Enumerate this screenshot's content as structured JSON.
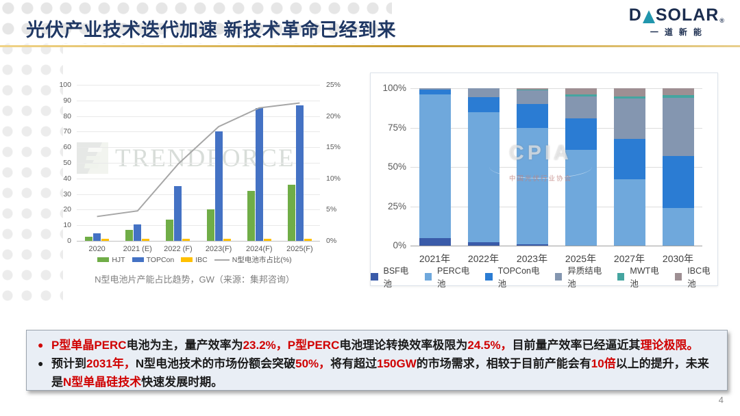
{
  "header": {
    "title": "光伏产业技术迭代加速 新技术革命已经到来",
    "logo": {
      "part1": "D",
      "part2": "SOLAR",
      "reg": "®",
      "subtitle": "一道新能"
    }
  },
  "page_number": "4",
  "watermarks": {
    "left_chart": "TRENDFORCE",
    "right_chart_main": "CPIA",
    "right_chart_sub": "中国光伏行业协会"
  },
  "chart_data": [
    {
      "type": "bar",
      "title": "N型电池片产能占比趋势，GW（来源：集邦咨询）",
      "categories": [
        "2020",
        "2021 (E)",
        "2022 (F)",
        "2023(F)",
        "2024(F)",
        "2025(F)"
      ],
      "series": [
        {
          "name": "HJT",
          "type": "bar",
          "color": "#70ad47",
          "values": [
            2.5,
            7,
            13.5,
            20,
            32,
            36
          ]
        },
        {
          "name": "TOPCon",
          "type": "bar",
          "color": "#4472c4",
          "values": [
            5,
            10.5,
            35,
            70,
            85,
            87
          ]
        },
        {
          "name": "IBC",
          "type": "bar",
          "color": "#ffc000",
          "values": [
            1.5,
            1.5,
            1.5,
            1.5,
            1.5,
            1.5
          ]
        },
        {
          "name": "N型电池市占比(%)",
          "type": "line",
          "color": "#a6a6a6",
          "axis": "right",
          "values": [
            3.9,
            4.8,
            12.3,
            18.3,
            21.3,
            22.1
          ]
        }
      ],
      "left_axis": {
        "min": 0,
        "max": 100,
        "step": 10
      },
      "right_axis": {
        "min": 0,
        "max": 25,
        "step": 5,
        "suffix": "%"
      },
      "grid": true,
      "legend_position": "bottom"
    },
    {
      "type": "bar",
      "subtype": "stacked-100",
      "title": "",
      "categories": [
        "2021年",
        "2022年",
        "2023年",
        "2025年",
        "2027年",
        "2030年"
      ],
      "series": [
        {
          "name": "BSF电池",
          "color": "#3a5ba9",
          "values": [
            5,
            2,
            1,
            0,
            0,
            0
          ]
        },
        {
          "name": "PERC电池",
          "color": "#6fa8dc",
          "values": [
            91,
            83,
            74,
            61,
            42,
            24
          ]
        },
        {
          "name": "TOPCon电池",
          "color": "#2b7cd3",
          "values": [
            3,
            9.5,
            15,
            20,
            26,
            33
          ]
        },
        {
          "name": "异质结电池",
          "color": "#8496b0",
          "values": [
            1,
            5.5,
            8.5,
            14,
            25.5,
            37
          ]
        },
        {
          "name": "MWT电池",
          "color": "#45a5a0",
          "values": [
            0,
            0,
            0.5,
            1,
            1.5,
            1.5
          ]
        },
        {
          "name": "IBC电池",
          "color": "#9e8f93",
          "values": [
            0,
            0,
            1,
            4,
            5,
            4.5
          ]
        }
      ],
      "y_axis": {
        "min": 0,
        "max": 100,
        "step": 25,
        "tick_labels": [
          "0%",
          "25%",
          "50%",
          "75%",
          "100%"
        ]
      },
      "grid": true,
      "legend_position": "bottom"
    }
  ],
  "notes": {
    "bullets": [
      {
        "marker": "●",
        "marker_color": "#d00000",
        "segments": [
          {
            "text": "P型单晶PERC",
            "color": "#d00000"
          },
          {
            "text": "电池为主，量产效率为",
            "color": "#1a1a1a"
          },
          {
            "text": "23.2%，",
            "color": "#d00000"
          },
          {
            "text": "P型PERC",
            "color": "#d00000"
          },
          {
            "text": "电池理论转换效率极限为",
            "color": "#1a1a1a"
          },
          {
            "text": "24.5%，",
            "color": "#d00000"
          },
          {
            "text": "目前量产效率已经逼近其",
            "color": "#1a1a1a"
          },
          {
            "text": "理论极限。",
            "color": "#d00000"
          }
        ]
      },
      {
        "marker": "●",
        "marker_color": "#1a1a1a",
        "segments": [
          {
            "text": "预计到",
            "color": "#1a1a1a"
          },
          {
            "text": "2031年，",
            "color": "#d00000"
          },
          {
            "text": "N型电池技术的市场份额会突破",
            "color": "#1a1a1a"
          },
          {
            "text": "50%，",
            "color": "#d00000"
          },
          {
            "text": "将有超过",
            "color": "#1a1a1a"
          },
          {
            "text": "150GW",
            "color": "#d00000"
          },
          {
            "text": "的市场需求，相较于目前产能会有",
            "color": "#1a1a1a"
          },
          {
            "text": "10倍",
            "color": "#d00000"
          },
          {
            "text": "以上的提升，未来是",
            "color": "#1a1a1a"
          },
          {
            "text": "N型单晶硅技术",
            "color": "#d00000"
          },
          {
            "text": "快速发展时期。",
            "color": "#1a1a1a"
          }
        ]
      }
    ]
  }
}
